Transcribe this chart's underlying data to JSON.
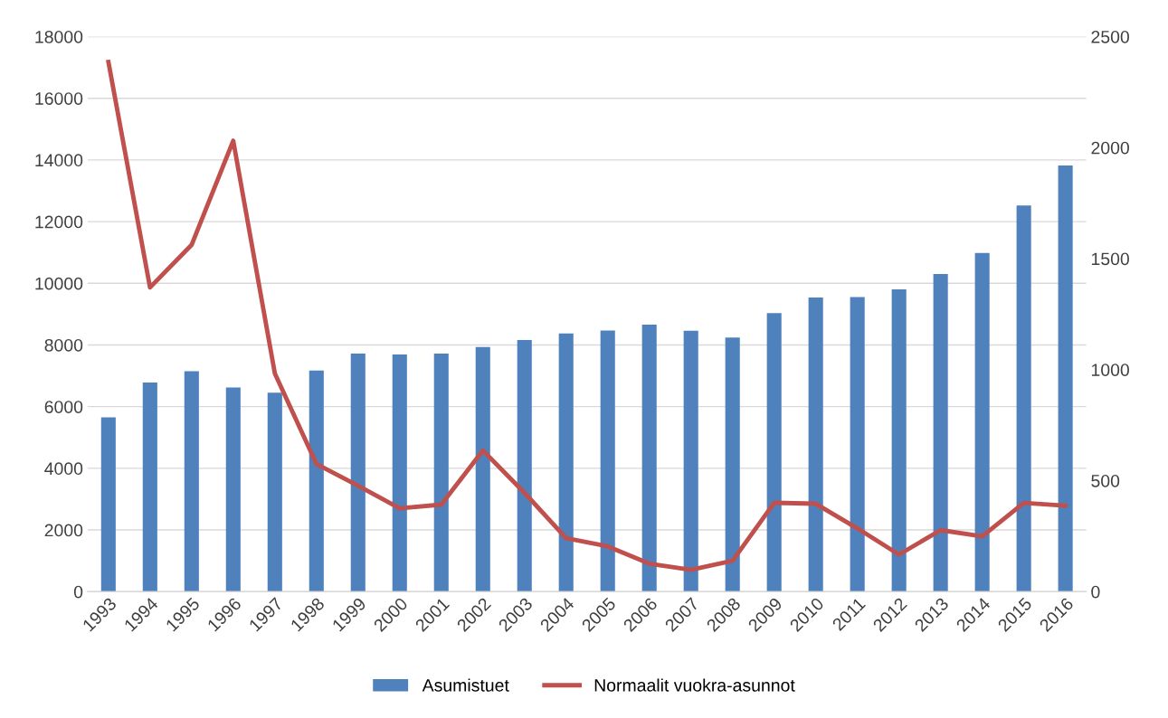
{
  "chart_data": {
    "type": "bar",
    "categories": [
      "1993",
      "1994",
      "1995",
      "1996",
      "1997",
      "1998",
      "1999",
      "2000",
      "2001",
      "2002",
      "2003",
      "2004",
      "2005",
      "2006",
      "2007",
      "2008",
      "2009",
      "2010",
      "2011",
      "2012",
      "2013",
      "2014",
      "2015",
      "2016"
    ],
    "series": [
      {
        "name": "Asumistuet",
        "color": "#4f81bd",
        "values": [
          5650,
          6780,
          7150,
          6620,
          6450,
          7170,
          7720,
          7690,
          7720,
          7930,
          8160,
          8370,
          8470,
          8660,
          8460,
          8240,
          9030,
          9540,
          9550,
          9800,
          10300,
          10980,
          12520,
          13820
        ]
      },
      {
        "name": "Normaalit vuokra-asunnot",
        "type": "line",
        "axis": "y2",
        "color": "#c0504d",
        "values": [
          2386,
          1370,
          1562,
          2031,
          983,
          575,
          477,
          375,
          392,
          636,
          445,
          241,
          204,
          126,
          98,
          139,
          400,
          396,
          285,
          167,
          277,
          249,
          400,
          387
        ]
      }
    ],
    "ylim": [
      0,
      18000
    ],
    "yticks": [
      0,
      2000,
      4000,
      6000,
      8000,
      10000,
      12000,
      14000,
      16000,
      18000
    ],
    "y2lim": [
      0,
      2500
    ],
    "y2ticks": [
      0,
      500,
      1000,
      1500,
      2000,
      2500
    ],
    "grid": "y",
    "legend": "bottom",
    "marker": "none",
    "line_style": "solid"
  }
}
